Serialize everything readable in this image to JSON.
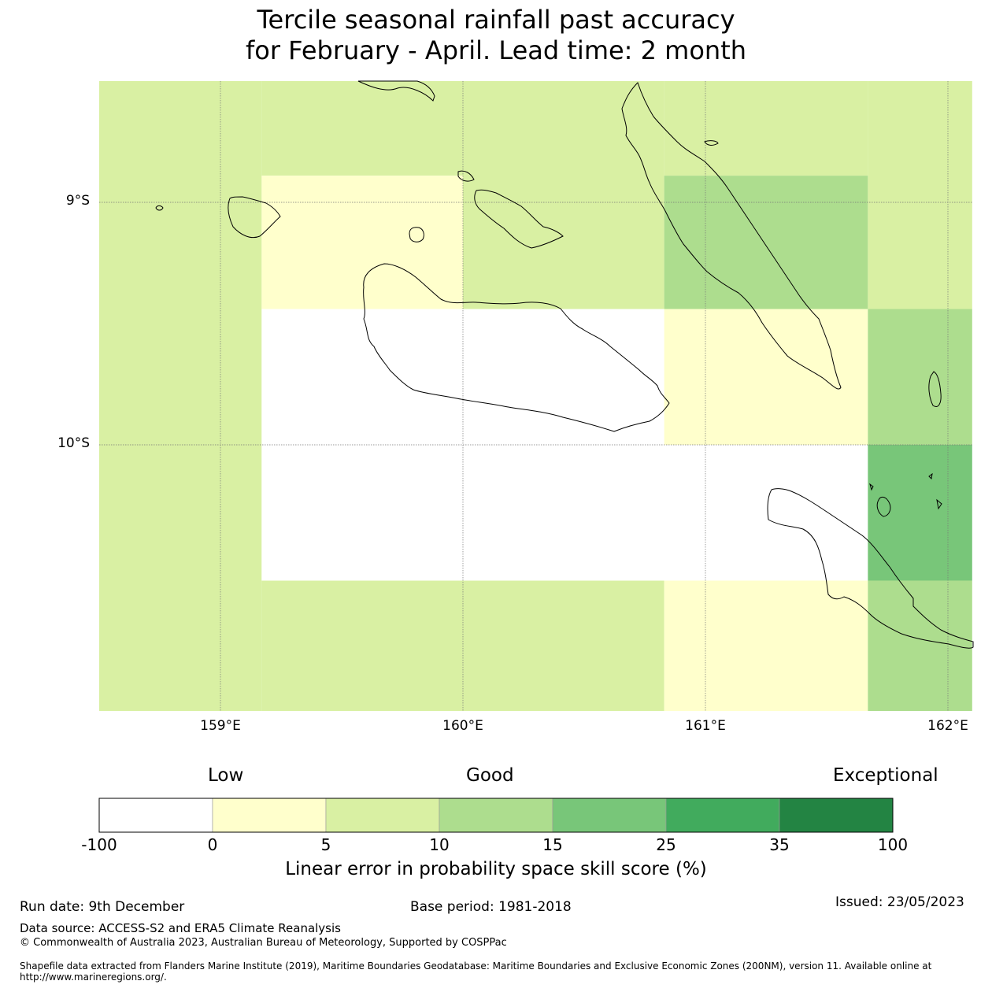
{
  "title": {
    "line1": "Tercile seasonal rainfall past accuracy",
    "line2": "for February - April. Lead time: 2 month"
  },
  "map": {
    "lat_labels": [
      "9°S",
      "10°S"
    ],
    "lon_labels": [
      "159°E",
      "160°E",
      "161°E",
      "162°E"
    ],
    "lon_range": [
      158.5,
      162.1
    ],
    "lat_range": [
      -8.5,
      -11.1
    ],
    "cells": [
      {
        "lon": [
          158.5,
          159.17
        ],
        "lat": [
          -8.5,
          -11.1
        ],
        "skill_class": "5-10"
      },
      {
        "lon": [
          159.17,
          160.0
        ],
        "lat": [
          -8.5,
          -8.89
        ],
        "skill_class": "5-10"
      },
      {
        "lon": [
          159.17,
          160.0
        ],
        "lat": [
          -8.89,
          -9.44
        ],
        "skill_class": "0-5"
      },
      {
        "lon": [
          160.0,
          160.83
        ],
        "lat": [
          -8.5,
          -9.44
        ],
        "skill_class": "5-10"
      },
      {
        "lon": [
          160.83,
          161.67
        ],
        "lat": [
          -8.5,
          -8.89
        ],
        "skill_class": "5-10"
      },
      {
        "lon": [
          160.83,
          161.67
        ],
        "lat": [
          -8.89,
          -9.44
        ],
        "skill_class": "10-15"
      },
      {
        "lon": [
          161.67,
          162.1
        ],
        "lat": [
          -8.5,
          -9.44
        ],
        "skill_class": "5-10"
      },
      {
        "lon": [
          159.17,
          160.83
        ],
        "lat": [
          -9.44,
          -10.0
        ],
        "skill_class": "<0"
      },
      {
        "lon": [
          160.83,
          161.67
        ],
        "lat": [
          -9.44,
          -10.0
        ],
        "skill_class": "0-5"
      },
      {
        "lon": [
          161.67,
          162.1
        ],
        "lat": [
          -9.44,
          -10.0
        ],
        "skill_class": "10-15"
      },
      {
        "lon": [
          159.17,
          161.67
        ],
        "lat": [
          -10.0,
          -10.56
        ],
        "skill_class": "<0"
      },
      {
        "lon": [
          161.67,
          162.1
        ],
        "lat": [
          -10.0,
          -10.56
        ],
        "skill_class": "15-25"
      },
      {
        "lon": [
          159.17,
          160.83
        ],
        "lat": [
          -10.56,
          -11.1
        ],
        "skill_class": "5-10"
      },
      {
        "lon": [
          160.83,
          161.67
        ],
        "lat": [
          -10.56,
          -11.1
        ],
        "skill_class": "0-5"
      },
      {
        "lon": [
          161.67,
          162.1
        ],
        "lat": [
          -10.56,
          -11.1
        ],
        "skill_class": "10-15"
      }
    ]
  },
  "legend": {
    "categories": [
      "Low",
      "Good",
      "Exceptional"
    ],
    "ticks": [
      "-100",
      "0",
      "5",
      "10",
      "15",
      "25",
      "35",
      "100"
    ],
    "bins": [
      {
        "class": "<0",
        "color": "#ffffff"
      },
      {
        "class": "0-5",
        "color": "#ffffcc"
      },
      {
        "class": "5-10",
        "color": "#d9f0a3"
      },
      {
        "class": "10-15",
        "color": "#addd8e"
      },
      {
        "class": "15-25",
        "color": "#78c679"
      },
      {
        "class": "25-35",
        "color": "#41ab5d"
      },
      {
        "class": "35-100",
        "color": "#238443"
      }
    ],
    "title": "Linear error in probability space skill score (%)"
  },
  "footer": {
    "run_date": "Run date: 9th December",
    "base_period": "Base period: 1981-2018",
    "issued": "Issued: 23/05/2023",
    "data_source": "Data source: ACCESS-S2 and ERA5 Climate Reanalysis",
    "copyright": "© Commonwealth of Australia 2023, Australian Bureau of Meteorology, Supported by COSPPac",
    "shapefile": "Shapefile data extracted from Flanders Marine Institute (2019), Maritime Boundaries Geodatabase: Maritime Boundaries and Exclusive Economic Zones (200NM), version 11. Available online at http://www.marineregions.org/."
  }
}
